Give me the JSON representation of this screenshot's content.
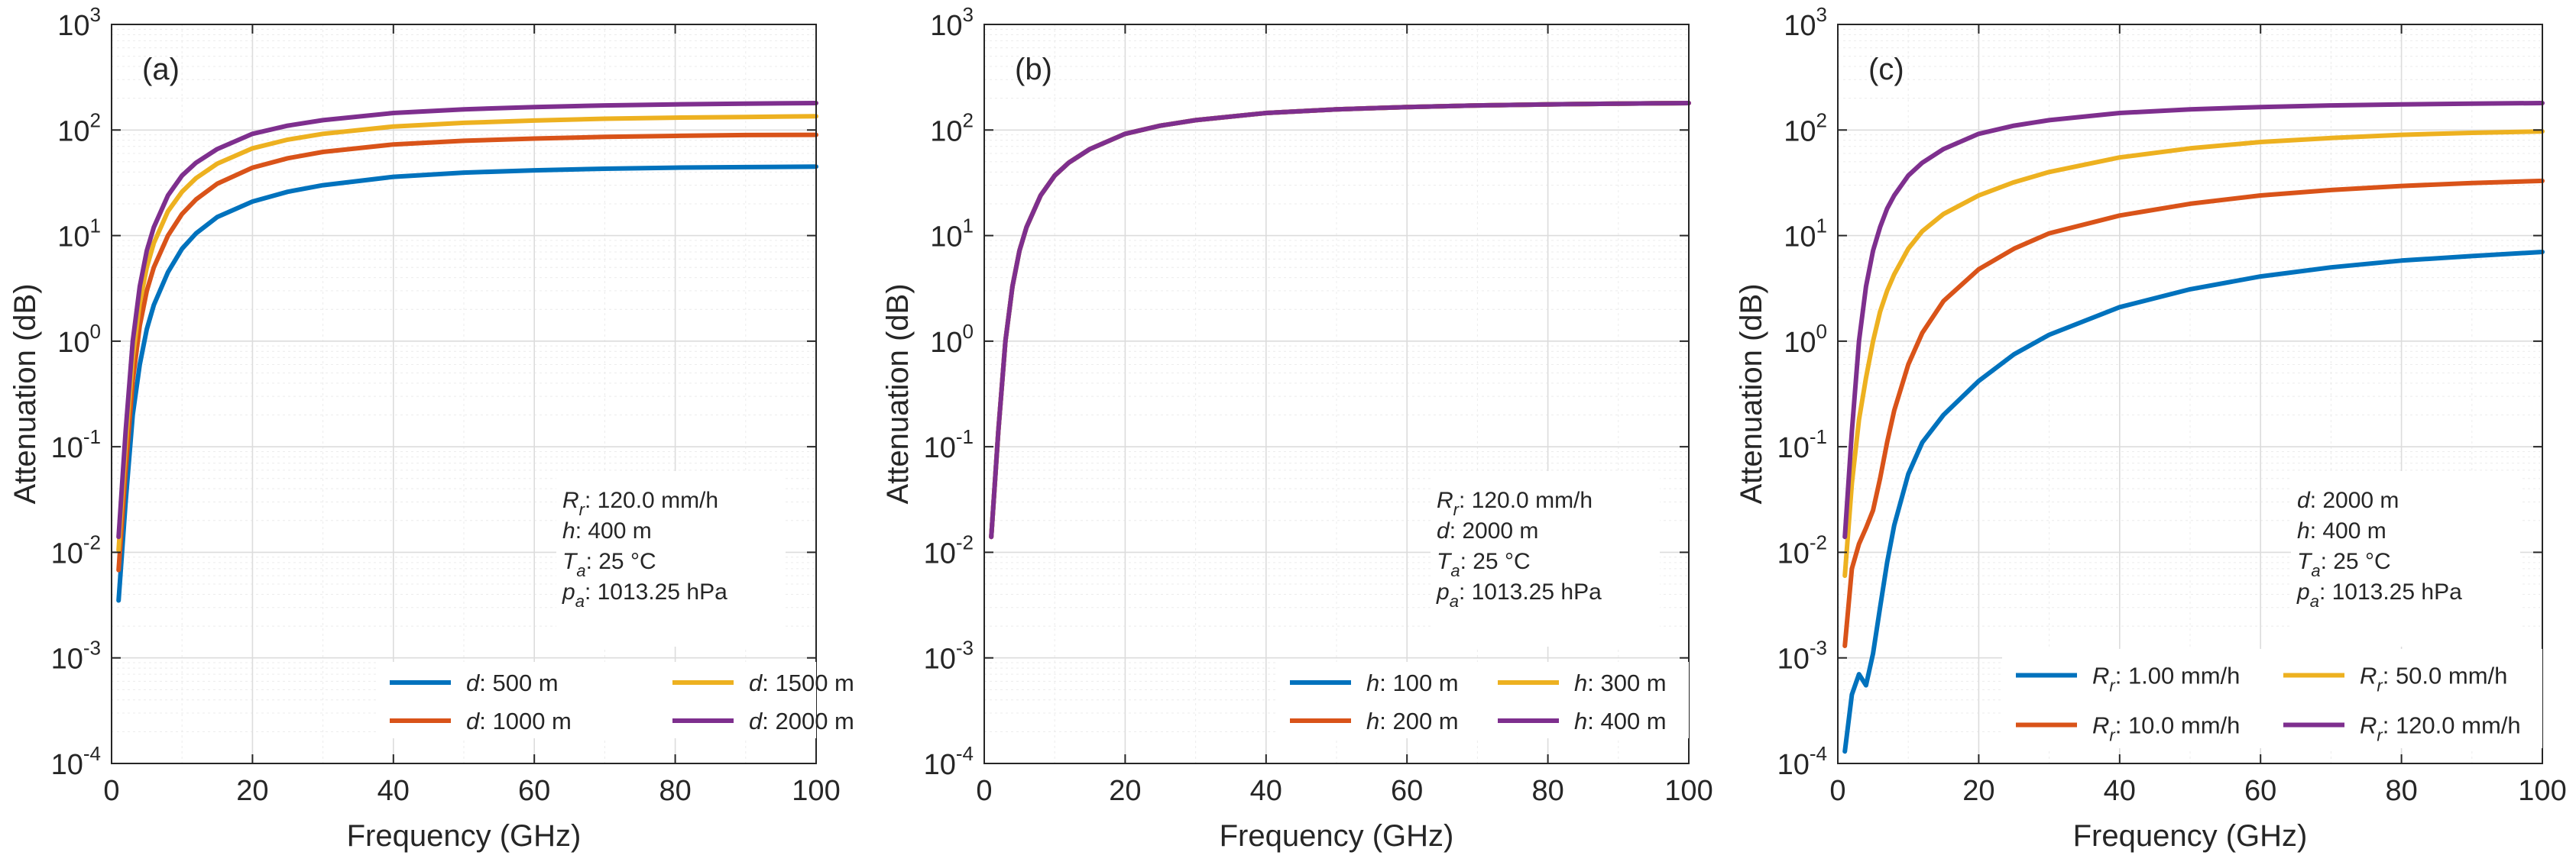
{
  "figure": {
    "x_tick_labels": [
      "0",
      "20",
      "40",
      "60",
      "80",
      "100"
    ],
    "y_tick_labels": [
      {
        "base": "10",
        "exp": "-4"
      },
      {
        "base": "10",
        "exp": "-3"
      },
      {
        "base": "10",
        "exp": "-2"
      },
      {
        "base": "10",
        "exp": "-1"
      },
      {
        "base": "10",
        "exp": "0"
      },
      {
        "base": "10",
        "exp": "1"
      },
      {
        "base": "10",
        "exp": "2"
      },
      {
        "base": "10",
        "exp": "3"
      }
    ],
    "colors": {
      "blue": "#0072BD",
      "red": "#D95319",
      "yellow": "#EDB120",
      "purple": "#7E2F8E"
    }
  },
  "chart_data": [
    {
      "type": "line",
      "panel_label": "(a)",
      "xlabel": "Frequency (GHz)",
      "ylabel": "Attenuation (dB)",
      "xlim": [
        0,
        100
      ],
      "ylim": [
        0.0001,
        1000
      ],
      "yscale": "log",
      "grid": true,
      "annotation": [
        {
          "sym": "R",
          "sub": "r",
          "val": ": 120.0 mm/h"
        },
        {
          "sym": "h",
          "sub": "",
          "val": ": 400 m"
        },
        {
          "sym": "T",
          "sub": "a",
          "val": ": 25 °C"
        },
        {
          "sym": "p",
          "sub": "a",
          "val": ": 1013.25 hPa"
        }
      ],
      "legend_position": "bottom-right",
      "x": [
        1,
        2,
        3,
        4,
        5,
        6,
        8,
        10,
        12,
        15,
        20,
        25,
        30,
        40,
        50,
        60,
        70,
        80,
        90,
        100
      ],
      "series": [
        {
          "sym": "d",
          "sub": "",
          "val": ": 500 m",
          "color": "#0072BD",
          "values": [
            0.0035,
            0.03,
            0.2,
            0.6,
            1.3,
            2.2,
            4.5,
            7.5,
            10.5,
            15,
            21,
            26,
            30,
            36,
            39.5,
            41.5,
            43,
            44,
            44.5,
            45
          ]
        },
        {
          "sym": "d",
          "sub": "",
          "val": ": 1000 m",
          "color": "#D95319",
          "values": [
            0.0068,
            0.06,
            0.42,
            1.4,
            3.0,
            5.0,
            10,
            16,
            22,
            31,
            44,
            54,
            62,
            73,
            79,
            83,
            86,
            88,
            89.5,
            90
          ]
        },
        {
          "sym": "d",
          "sub": "",
          "val": ": 1500 m",
          "color": "#EDB120",
          "values": [
            0.0105,
            0.1,
            0.7,
            2.3,
            5.0,
            8.5,
            17,
            26,
            35,
            48,
            67,
            81,
            92,
            108,
            117,
            123,
            128,
            131,
            133,
            135
          ]
        },
        {
          "sym": "d",
          "sub": "",
          "val": ": 2000 m",
          "color": "#7E2F8E",
          "values": [
            0.014,
            0.14,
            1.0,
            3.3,
            7.2,
            12,
            24,
            37,
            49,
            66,
            92,
            110,
            124,
            145,
            157,
            165,
            171,
            175,
            178,
            180
          ]
        }
      ]
    },
    {
      "type": "line",
      "panel_label": "(b)",
      "xlabel": "Frequency (GHz)",
      "ylabel": "Attenuation (dB)",
      "xlim": [
        0,
        100
      ],
      "ylim": [
        0.0001,
        1000
      ],
      "yscale": "log",
      "grid": true,
      "annotation": [
        {
          "sym": "R",
          "sub": "r",
          "val": ": 120.0 mm/h"
        },
        {
          "sym": "d",
          "sub": "",
          "val": ": 2000 m"
        },
        {
          "sym": "T",
          "sub": "a",
          "val": ": 25 °C"
        },
        {
          "sym": "p",
          "sub": "a",
          "val": ": 1013.25 hPa"
        }
      ],
      "legend_position": "bottom-right",
      "x": [
        1,
        2,
        3,
        4,
        5,
        6,
        8,
        10,
        12,
        15,
        20,
        25,
        30,
        40,
        50,
        60,
        70,
        80,
        90,
        100
      ],
      "series": [
        {
          "sym": "h",
          "sub": "",
          "val": ": 100 m",
          "color": "#0072BD",
          "values": [
            0.014,
            0.14,
            1.0,
            3.3,
            7.2,
            12,
            24,
            37,
            49,
            66,
            92,
            110,
            124,
            145,
            157,
            165,
            171,
            175,
            178,
            180
          ]
        },
        {
          "sym": "h",
          "sub": "",
          "val": ": 200 m",
          "color": "#D95319",
          "values": [
            0.014,
            0.14,
            1.0,
            3.3,
            7.2,
            12,
            24,
            37,
            49,
            66,
            92,
            110,
            124,
            145,
            157,
            165,
            171,
            175,
            178,
            180
          ]
        },
        {
          "sym": "h",
          "sub": "",
          "val": ": 300 m",
          "color": "#EDB120",
          "values": [
            0.014,
            0.14,
            1.0,
            3.3,
            7.2,
            12,
            24,
            37,
            49,
            66,
            92,
            110,
            124,
            145,
            157,
            165,
            171,
            175,
            178,
            180
          ]
        },
        {
          "sym": "h",
          "sub": "",
          "val": ": 400 m",
          "color": "#7E2F8E",
          "values": [
            0.014,
            0.14,
            1.0,
            3.3,
            7.2,
            12,
            24,
            37,
            49,
            66,
            92,
            110,
            124,
            145,
            157,
            165,
            171,
            175,
            178,
            180
          ]
        }
      ]
    },
    {
      "type": "line",
      "panel_label": "(c)",
      "xlabel": "Frequency (GHz)",
      "ylabel": "Attenuation (dB)",
      "xlim": [
        0,
        100
      ],
      "ylim": [
        0.0001,
        1000
      ],
      "yscale": "log",
      "grid": true,
      "annotation": [
        {
          "sym": "d",
          "sub": "",
          "val": ": 2000 m"
        },
        {
          "sym": "h",
          "sub": "",
          "val": ": 400 m"
        },
        {
          "sym": "T",
          "sub": "a",
          "val": ": 25 °C"
        },
        {
          "sym": "p",
          "sub": "a",
          "val": ": 1013.25 hPa"
        }
      ],
      "legend_position": "bottom-right",
      "x": [
        1,
        2,
        3,
        4,
        5,
        6,
        7,
        8,
        10,
        12,
        15,
        20,
        25,
        30,
        40,
        50,
        60,
        70,
        80,
        90,
        100
      ],
      "series": [
        {
          "sym": "R",
          "sub": "r",
          "val": ": 1.00 mm/h",
          "color": "#0072BD",
          "values": [
            0.00013,
            0.00045,
            0.0007,
            0.00055,
            0.0011,
            0.003,
            0.008,
            0.018,
            0.055,
            0.11,
            0.2,
            0.42,
            0.75,
            1.15,
            2.1,
            3.1,
            4.1,
            5.0,
            5.8,
            6.4,
            7.0
          ]
        },
        {
          "sym": "R",
          "sub": "r",
          "val": ": 10.0 mm/h",
          "color": "#D95319",
          "values": [
            0.0013,
            0.007,
            0.012,
            0.017,
            0.025,
            0.05,
            0.11,
            0.22,
            0.6,
            1.2,
            2.4,
            4.8,
            7.5,
            10.5,
            15.5,
            20,
            24,
            27,
            29.5,
            31.5,
            33
          ]
        },
        {
          "sym": "R",
          "sub": "r",
          "val": ": 50.0 mm/h",
          "color": "#EDB120",
          "values": [
            0.006,
            0.045,
            0.18,
            0.45,
            1.0,
            1.9,
            3.0,
            4.3,
            7.5,
            11,
            16,
            24,
            32,
            40,
            55,
            67,
            77,
            84,
            90,
            94,
            97
          ]
        },
        {
          "sym": "R",
          "sub": "r",
          "val": ": 120.0 mm/h",
          "color": "#7E2F8E",
          "values": [
            0.014,
            0.14,
            1.0,
            3.3,
            7.2,
            12,
            18,
            24,
            37,
            49,
            66,
            92,
            110,
            124,
            145,
            157,
            165,
            171,
            175,
            178,
            180
          ]
        }
      ]
    }
  ]
}
